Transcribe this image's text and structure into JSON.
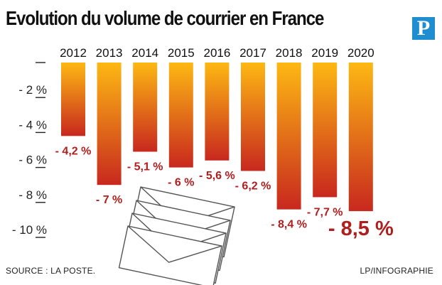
{
  "title": "Evolution du volume de courrier en France",
  "logo_letter": "P",
  "source": "SOURCE : LA POSTE.",
  "credit": "LP/INFOGRAPHIE",
  "colors": {
    "bar_top": "#fdb813",
    "bar_bottom": "#c8281e",
    "label": "#b01e1e",
    "logo": "#1f8ed1"
  },
  "chart_data": {
    "type": "bar",
    "title": "Evolution du volume de courrier en France",
    "xlabel": "",
    "ylabel": "",
    "categories": [
      "2012",
      "2013",
      "2014",
      "2015",
      "2016",
      "2017",
      "2018",
      "2019",
      "2020"
    ],
    "values": [
      -4.2,
      -7,
      -5.1,
      -6,
      -5.6,
      -6.2,
      -8.4,
      -7.7,
      -8.5
    ],
    "value_labels": [
      "- 4,2 %",
      "- 7 %",
      "- 5,1 %",
      "- 6 %",
      "- 5,6 %",
      "- 6,2 %",
      "- 8,4 %",
      "- 7,7 %",
      "- 8,5 %"
    ],
    "ylim": [
      -10,
      0
    ],
    "yticks": [
      -2,
      -4,
      -6,
      -8,
      -10
    ],
    "ytick_labels": [
      "- 2 %",
      "- 4 %",
      "- 6 %",
      "- 8 %",
      "- 10 %"
    ],
    "grid": false,
    "legend": "none"
  }
}
